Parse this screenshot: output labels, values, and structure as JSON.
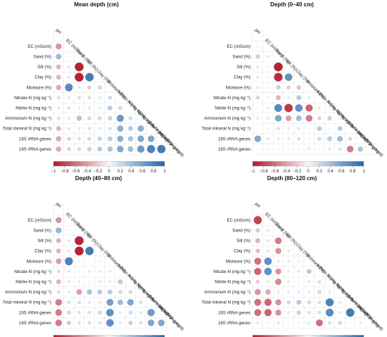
{
  "colors": {
    "negative_end": "#b2182b",
    "neutral": "#f7f7f7",
    "positive_end": "#2166ac"
  },
  "chart_data": [
    {
      "type": "heatmap",
      "title": "Mean depth (cm)",
      "variables": [
        "pH",
        "EC (mS/cm)",
        "Sand (%)",
        "Silt (%)",
        "Clay (%)",
        "Moisture (%)",
        "Nitrate-N (mg kg⁻¹)",
        "Nitrite-N (mg kg⁻¹)",
        "Ammonium-N (mg kg⁻¹)",
        "Total mineral N (mg kg⁻¹)",
        "16S rRNA genes",
        "18S rRNA genes"
      ],
      "colorbar_ticks": [
        "−1",
        "−0.8",
        "−0.6",
        "−0.4",
        "−0.2",
        "0",
        "0.2",
        "0.4",
        "0.6",
        "0.8",
        "1"
      ],
      "colorbar_range": [
        -1,
        1
      ],
      "matrix": [
        [
          -0.45
        ],
        [
          0.4,
          0.05
        ],
        [
          -0.3,
          -0.1,
          -0.95
        ],
        [
          -0.3,
          -0.1,
          -0.95,
          0.85
        ],
        [
          -0.35,
          0.75,
          -0.1,
          -0.2,
          0.2
        ],
        [
          -0.15,
          0.1,
          -0.15,
          0.15,
          0.1,
          0.2
        ],
        [
          -0.1,
          0.15,
          0.1,
          0.1,
          0.1,
          0.3,
          0.2
        ],
        [
          -0.15,
          0.1,
          0.35,
          0.2,
          0.2,
          0.25,
          0.65,
          0.2
        ],
        [
          -0.3,
          0.1,
          0.1,
          0.15,
          0.1,
          0.15,
          0.5,
          0.3,
          0.5
        ],
        [
          -0.35,
          0.2,
          0.15,
          0.2,
          0.25,
          0.3,
          0.5,
          0.35,
          0.55,
          0.55
        ],
        [
          -0.35,
          0.2,
          0.2,
          0.25,
          0.3,
          0.35,
          0.55,
          0.4,
          0.65,
          0.8,
          0.85
        ]
      ]
    },
    {
      "type": "heatmap",
      "title": "Depth (0–40 cm)",
      "variables": [
        "pH",
        "EC (mS/cm)",
        "Sand (%)",
        "Silt (%)",
        "Clay (%)",
        "Moisture (%)",
        "Nitrate-N (mg kg⁻¹)",
        "Nitrite-N (mg kg⁻¹)",
        "Ammonium-N (mg kg⁻¹)",
        "Total mineral N (mg kg⁻¹)",
        "16S rRNA genes",
        "18S rRNA genes"
      ],
      "colorbar_ticks": [
        "−1",
        "−0.8",
        "−0.6",
        "−0.4",
        "−0.2",
        "0",
        "0.2",
        "0.4",
        "0.6",
        "0.8",
        "1"
      ],
      "colorbar_range": [
        -1,
        1
      ],
      "matrix": [
        [
          -0.05
        ],
        [
          0.25,
          0.1
        ],
        [
          -0.1,
          -0.05,
          -0.95
        ],
        [
          -0.1,
          -0.05,
          -0.9,
          0.7
        ],
        [
          0.1,
          0.05,
          0.25,
          -0.2,
          -0.25
        ],
        [
          -0.2,
          0.05,
          -0.3,
          -0.1,
          0.3,
          0.1
        ],
        [
          0.05,
          0.1,
          0.75,
          -0.85,
          0.7,
          -0.65,
          0.1
        ],
        [
          -0.1,
          0.1,
          0.55,
          -0.4,
          0.4,
          -0.55,
          0.2,
          0.25
        ],
        [
          0.0,
          0.05,
          0.15,
          -0.1,
          0.1,
          0.05,
          0.3,
          0.05,
          0.3
        ],
        [
          0.55,
          0.1,
          0.1,
          -0.1,
          0.15,
          0.05,
          0.2,
          0.3,
          0.4,
          0.2
        ],
        [
          0.05,
          0.05,
          0.05,
          0.05,
          0.05,
          0.1,
          0.05,
          0.1,
          0.15,
          -0.55,
          0.35
        ]
      ]
    },
    {
      "type": "heatmap",
      "title": "Depth (40–80 cm)",
      "variables": [
        "pH",
        "EC (mS/cm)",
        "Sand (%)",
        "Silt (%)",
        "Clay (%)",
        "Moisture (%)",
        "Nitrate-N (mg kg⁻¹)",
        "Nitrite-N (mg kg⁻¹)",
        "Ammonium-N (mg kg⁻¹)",
        "Total mineral N (mg kg⁻¹)",
        "16S rRNA genes",
        "18S rRNA genes"
      ],
      "colorbar_ticks": [
        "−1",
        "−0.8",
        "−0.6",
        "−0.4",
        "−0.2",
        "0",
        "0.2",
        "0.4",
        "0.6",
        "0.8",
        "1"
      ],
      "colorbar_range": [
        -1,
        1
      ],
      "matrix": [
        [
          -0.45
        ],
        [
          0.45,
          0.05
        ],
        [
          -0.3,
          -0.1,
          -0.95
        ],
        [
          -0.3,
          -0.1,
          -0.95,
          0.85
        ],
        [
          -0.4,
          0.8,
          -0.05,
          0.0,
          0.05
        ],
        [
          -0.15,
          0.1,
          -0.05,
          0.1,
          0.1,
          0.1
        ],
        [
          -0.3,
          0.1,
          0.1,
          0.05,
          0.1,
          0.1,
          0.3
        ],
        [
          -0.15,
          0.1,
          -0.4,
          0.35,
          0.3,
          0.3,
          0.2,
          0.2
        ],
        [
          -0.55,
          0.15,
          0.15,
          0.1,
          0.1,
          0.6,
          0.4,
          0.55,
          0.15
        ],
        [
          -0.55,
          0.2,
          0.15,
          0.15,
          0.2,
          0.7,
          0.1,
          0.2,
          0.1,
          0.65
        ],
        [
          -0.55,
          0.25,
          0.15,
          0.15,
          0.15,
          0.7,
          0.1,
          0.25,
          0.15,
          0.55,
          0.55
        ]
      ]
    },
    {
      "type": "heatmap",
      "title": "Depth (80–120 cm)",
      "variables": [
        "pH",
        "EC (mS/cm)",
        "Sand (%)",
        "Silt (%)",
        "Clay (%)",
        "Moisture (%)",
        "Nitrate-N (mg kg⁻¹)",
        "Nitrite-N (mg kg⁻¹)",
        "Ammonium-N (mg kg⁻¹)",
        "Total mineral N (mg kg⁻¹)",
        "16S rRNA genes",
        "18S rRNA genes"
      ],
      "colorbar_ticks": [
        "−1",
        "−0.8",
        "−0.6",
        "−0.4",
        "−0.2",
        "0",
        "0.2",
        "0.4",
        "0.6",
        "0.8",
        "1"
      ],
      "colorbar_range": [
        -1,
        1
      ],
      "matrix": [
        [
          -0.8
        ],
        [
          0.25,
          0.1
        ],
        [
          -0.3,
          -0.1,
          -0.55
        ],
        [
          -0.25,
          -0.1,
          -0.45,
          0.1
        ],
        [
          -0.6,
          0.7,
          -0.1,
          0.1,
          0.1
        ],
        [
          -0.65,
          0.7,
          -0.45,
          0.1,
          0.1,
          0.3
        ],
        [
          -0.2,
          0.1,
          -0.5,
          -0.1,
          0.05,
          0.1,
          0.15
        ],
        [
          -0.45,
          -0.35,
          0.1,
          0.1,
          0.1,
          0.1,
          0.2,
          0.1
        ],
        [
          -0.6,
          -0.65,
          -0.45,
          0.2,
          0.3,
          0.2,
          0.15,
          0.8,
          0.1
        ],
        [
          -0.6,
          -0.65,
          -0.45,
          0.1,
          0.25,
          0.15,
          0.15,
          0.75,
          0.1,
          0.85
        ],
        [
          0.1,
          0.05,
          0.1,
          0.05,
          0.05,
          0.1,
          -0.6,
          0.15,
          0.2,
          0.05,
          0.1
        ]
      ]
    }
  ]
}
